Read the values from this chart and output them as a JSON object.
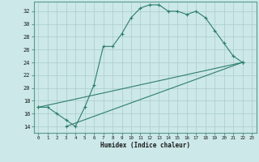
{
  "xlabel": "Humidex (Indice chaleur)",
  "bg_color": "#cce8e8",
  "line_color": "#2e7d6e",
  "grid_color": "#aacccc",
  "xlim": [
    -0.5,
    23.5
  ],
  "ylim": [
    13,
    33.5
  ],
  "xticks": [
    0,
    1,
    2,
    3,
    4,
    5,
    6,
    7,
    8,
    9,
    10,
    11,
    12,
    13,
    14,
    15,
    16,
    17,
    18,
    19,
    20,
    21,
    22,
    23
  ],
  "yticks": [
    14,
    16,
    18,
    20,
    22,
    24,
    26,
    28,
    30,
    32
  ],
  "line1_x": [
    0,
    1,
    2,
    3,
    4,
    5,
    6,
    7,
    8,
    9,
    10,
    11,
    12,
    13,
    14,
    15,
    16,
    17,
    18,
    19,
    20,
    21,
    22
  ],
  "line1_y": [
    17,
    17,
    16,
    15,
    14,
    17,
    20.5,
    26.5,
    26.5,
    28.5,
    31,
    32.5,
    33,
    33,
    32,
    32,
    31.5,
    32,
    31,
    29,
    27,
    25,
    24
  ],
  "line2_x": [
    0,
    22
  ],
  "line2_y": [
    17,
    24
  ],
  "line3_x": [
    3,
    22
  ],
  "line3_y": [
    14,
    24
  ]
}
